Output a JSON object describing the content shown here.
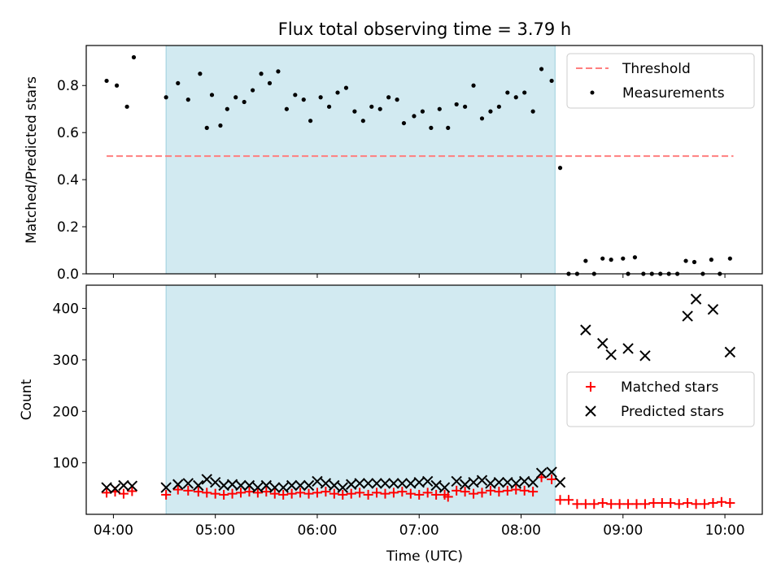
{
  "chart_data": {
    "title": "Flux total observing time = 3.79 h",
    "xlabel": "Time (UTC)",
    "x_ticks": [
      "04:00",
      "05:00",
      "06:00",
      "07:00",
      "08:00",
      "09:00",
      "10:00"
    ],
    "shaded_interval": {
      "start": "04:31",
      "end": "08:20",
      "color": "#add8e6"
    },
    "panels": [
      {
        "type": "scatter",
        "ylabel": "Matched/Predicted stars",
        "ylim": [
          0,
          0.97
        ],
        "y_ticks": [
          "0.0",
          "0.2",
          "0.4",
          "0.6",
          "0.8"
        ],
        "legend_position": "top-right",
        "series": [
          {
            "name": "Threshold",
            "style": "dashed-line",
            "color": "#ff7f7f",
            "x": [
              "03:56",
              "10:05"
            ],
            "y": [
              0.5,
              0.5
            ]
          },
          {
            "name": "Measurements",
            "style": "dot",
            "color": "#000000",
            "x": [
              "03:56",
              "04:02",
              "04:08",
              "04:12",
              "04:31",
              "04:38",
              "04:44",
              "04:51",
              "04:55",
              "04:58",
              "05:03",
              "05:07",
              "05:12",
              "05:17",
              "05:22",
              "05:27",
              "05:32",
              "05:37",
              "05:42",
              "05:47",
              "05:52",
              "05:56",
              "06:02",
              "06:07",
              "06:12",
              "06:17",
              "06:22",
              "06:27",
              "06:32",
              "06:37",
              "06:42",
              "06:47",
              "06:51",
              "06:57",
              "07:02",
              "07:07",
              "07:12",
              "07:17",
              "07:22",
              "07:27",
              "07:32",
              "07:37",
              "07:42",
              "07:47",
              "07:52",
              "07:57",
              "08:02",
              "08:07",
              "08:12",
              "08:18",
              "08:23",
              "08:28",
              "08:33",
              "08:38",
              "08:43",
              "08:48",
              "08:53",
              "09:00",
              "09:03",
              "09:07",
              "09:12",
              "09:17",
              "09:22",
              "09:27",
              "09:32",
              "09:37",
              "09:42",
              "09:47",
              "09:52",
              "09:57",
              "10:03"
            ],
            "y": [
              0.82,
              0.8,
              0.71,
              0.92,
              0.75,
              0.81,
              0.74,
              0.85,
              0.62,
              0.76,
              0.63,
              0.7,
              0.75,
              0.73,
              0.78,
              0.85,
              0.81,
              0.86,
              0.7,
              0.76,
              0.74,
              0.65,
              0.75,
              0.71,
              0.77,
              0.79,
              0.69,
              0.65,
              0.71,
              0.7,
              0.75,
              0.74,
              0.64,
              0.67,
              0.69,
              0.62,
              0.7,
              0.62,
              0.72,
              0.71,
              0.8,
              0.66,
              0.69,
              0.71,
              0.77,
              0.75,
              0.77,
              0.69,
              0.87,
              0.82,
              0.45,
              0.0,
              0.0,
              0.055,
              0.0,
              0.065,
              0.06,
              0.065,
              0.0,
              0.07,
              0.0,
              0.0,
              0.0,
              0.0,
              0.0,
              0.055,
              0.05,
              0.0,
              0.06,
              0.0,
              0.065
            ]
          }
        ]
      },
      {
        "type": "scatter",
        "ylabel": "Count",
        "ylim": [
          0,
          445
        ],
        "y_ticks": [
          "100",
          "200",
          "300",
          "400"
        ],
        "legend_position": "center-right",
        "series": [
          {
            "name": "Matched stars",
            "marker": "+",
            "color": "#ff0000",
            "x": [
              "03:56",
              "04:01",
              "04:06",
              "04:11",
              "04:31",
              "04:38",
              "04:44",
              "04:50",
              "04:55",
              "05:00",
              "05:05",
              "05:10",
              "05:15",
              "05:20",
              "05:25",
              "05:30",
              "05:35",
              "05:40",
              "05:45",
              "05:50",
              "05:55",
              "06:00",
              "06:05",
              "06:10",
              "06:15",
              "06:20",
              "06:25",
              "06:30",
              "06:35",
              "06:40",
              "06:45",
              "06:50",
              "06:55",
              "07:00",
              "07:05",
              "07:10",
              "07:15",
              "07:17",
              "07:22",
              "07:27",
              "07:32",
              "07:37",
              "07:42",
              "07:47",
              "07:52",
              "07:57",
              "08:02",
              "08:07",
              "08:12",
              "08:18",
              "08:23",
              "08:28",
              "08:33",
              "08:38",
              "08:43",
              "08:48",
              "08:53",
              "08:58",
              "09:03",
              "09:08",
              "09:13",
              "09:18",
              "09:23",
              "09:28",
              "09:33",
              "09:38",
              "09:43",
              "09:48",
              "09:53",
              "09:58",
              "10:03"
            ],
            "y": [
              42,
              44,
              40,
              45,
              38,
              48,
              46,
              44,
              42,
              40,
              38,
              40,
              42,
              44,
              42,
              44,
              40,
              38,
              40,
              42,
              40,
              42,
              44,
              40,
              38,
              40,
              42,
              38,
              42,
              40,
              42,
              44,
              40,
              38,
              42,
              38,
              38,
              34,
              46,
              44,
              40,
              42,
              46,
              44,
              46,
              48,
              46,
              44,
              72,
              68,
              28,
              28,
              20,
              20,
              20,
              22,
              20,
              20,
              20,
              20,
              20,
              22,
              22,
              22,
              20,
              22,
              20,
              20,
              22,
              24,
              22
            ]
          },
          {
            "name": "Predicted stars",
            "marker": "x",
            "color": "#000000",
            "x": [
              "03:56",
              "04:01",
              "04:06",
              "04:11",
              "04:31",
              "04:38",
              "04:44",
              "04:50",
              "04:55",
              "05:00",
              "05:05",
              "05:10",
              "05:15",
              "05:20",
              "05:25",
              "05:30",
              "05:35",
              "05:40",
              "05:45",
              "05:50",
              "05:55",
              "06:00",
              "06:05",
              "06:10",
              "06:15",
              "06:20",
              "06:25",
              "06:30",
              "06:35",
              "06:40",
              "06:45",
              "06:50",
              "06:55",
              "07:00",
              "07:05",
              "07:10",
              "07:15",
              "07:22",
              "07:27",
              "07:32",
              "07:37",
              "07:42",
              "07:47",
              "07:52",
              "07:57",
              "08:02",
              "08:07",
              "08:12",
              "08:18",
              "08:23",
              "08:38",
              "08:48",
              "08:53",
              "09:03",
              "09:13",
              "09:38",
              "09:43",
              "09:53",
              "10:03"
            ],
            "y": [
              52,
              50,
              56,
              55,
              52,
              58,
              60,
              56,
              68,
              62,
              56,
              58,
              56,
              56,
              52,
              56,
              52,
              52,
              56,
              56,
              56,
              64,
              60,
              56,
              52,
              58,
              60,
              60,
              60,
              60,
              60,
              60,
              60,
              62,
              64,
              56,
              52,
              64,
              58,
              62,
              66,
              60,
              62,
              62,
              60,
              64,
              62,
              80,
              82,
              62,
              358,
              332,
              310,
              322,
              308,
              385,
              418,
              398,
              315
            ]
          }
        ]
      }
    ]
  }
}
